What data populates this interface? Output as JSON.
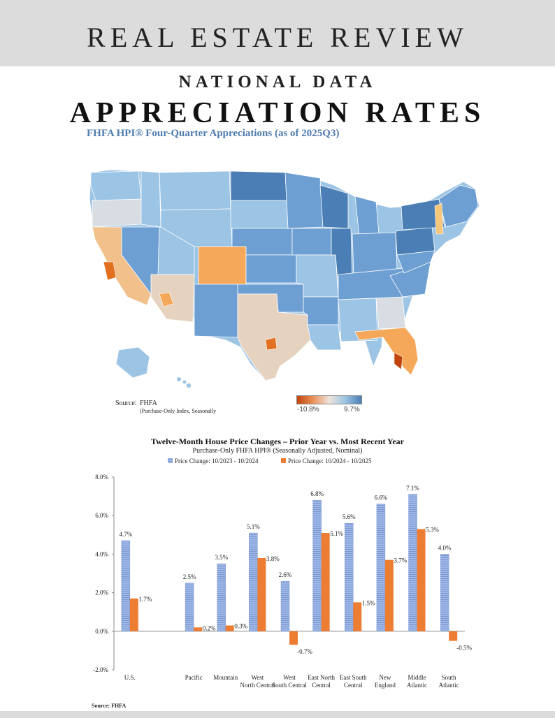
{
  "header": {
    "title": "REAL ESTATE REVIEW"
  },
  "kicker": "NATIONAL DATA",
  "main_title": "APPRECIATION RATES",
  "map": {
    "title": "FHFA HPI® Four-Quarter Appreciations (as of 2025Q3)",
    "source_label": "Source:",
    "source_value": "FHFA",
    "source_note": "(Purchase-Only Index, Seasonally",
    "scale_min": "-10.8%",
    "scale_max": "9.7%",
    "colors": {
      "deep_blue": "#4a7eb5",
      "mid_blue": "#6e9fd3",
      "light_blue": "#9cc4e4",
      "grey": "#d7dde2",
      "tan": "#e6d3bf",
      "orange": "#f5a85a",
      "deep_orange": "#e2701f"
    }
  },
  "chart_data": {
    "type": "bar",
    "title": "Twelve-Month House Price Changes – Prior Year vs. Most Recent Year",
    "subtitle": "Purchase-Only FHFA HPI® (Seasonally Adjusted, Nominal)",
    "categories": [
      "U.S.",
      "Pacific",
      "Mountain",
      "West North Central",
      "West South Central",
      "East North Central",
      "East South Central",
      "New England",
      "Middle Atlantic",
      "South Atlantic"
    ],
    "series": [
      {
        "name": "Price Change: 10/2023 - 10/2024",
        "color": "#8fabe0",
        "values": [
          4.7,
          2.5,
          3.5,
          5.1,
          2.6,
          6.8,
          5.6,
          6.6,
          7.1,
          4.0
        ],
        "labels": [
          "4.7%",
          "2.5%",
          "3.5%",
          "5.1%",
          "2.6%",
          "6.8%",
          "5.6%",
          "6.6%",
          "7.1%",
          "4.0%"
        ]
      },
      {
        "name": "Price Change: 10/2024 - 10/2025",
        "color": "#ec7d33",
        "values": [
          1.7,
          0.2,
          0.3,
          3.8,
          -0.7,
          5.1,
          1.5,
          3.7,
          5.3,
          -0.5
        ],
        "labels": [
          "1.7%",
          "0.2%",
          "0.3%",
          "3.8%",
          "-0.7%",
          "5.1%",
          "1.5%",
          "3.7%",
          "5.3%",
          "-0.5%"
        ]
      }
    ],
    "ylim": [
      -2.0,
      8.0
    ],
    "yticks": [
      -2.0,
      0.0,
      2.0,
      4.0,
      6.0,
      8.0
    ],
    "ytick_labels": [
      "-2.0%",
      "0.0%",
      "2.0%",
      "4.0%",
      "6.0%",
      "8.0%"
    ],
    "legend_position": "top-left",
    "grid": false,
    "source": "Source: FHFA"
  }
}
